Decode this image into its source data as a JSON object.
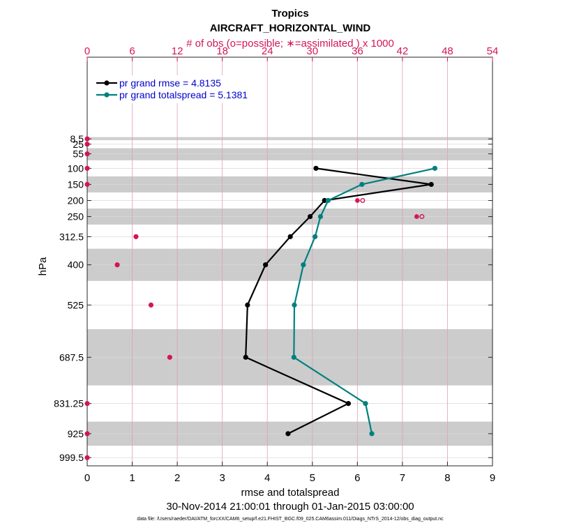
{
  "chart_data": {
    "type": "line",
    "title": "Tropics",
    "subtitle": "AIRCRAFT_HORIZONTAL_WIND",
    "xlabel": "rmse and totalspread",
    "ylabel": "hPa",
    "top_xlabel": "# of obs (o=possible; ∗=assimilated ) x 1000",
    "xlim": [
      0,
      9
    ],
    "x_ticks": [
      "0",
      "1",
      "2",
      "3",
      "4",
      "5",
      "6",
      "7",
      "8",
      "9"
    ],
    "top_xlim": [
      0,
      54
    ],
    "top_x_ticks": [
      "0",
      "6",
      "12",
      "18",
      "24",
      "30",
      "36",
      "42",
      "48",
      "54"
    ],
    "ylim": [
      0,
      1025
    ],
    "y_reversed": true,
    "levels": [
      8.5,
      25,
      55,
      100,
      150,
      200,
      250,
      312.5,
      400,
      525,
      687.5,
      831.25,
      925,
      999.5
    ],
    "level_labels": [
      "8.5",
      "25",
      "55",
      "100",
      "150",
      "200",
      "250",
      "312.5",
      "400",
      "525",
      "687.5",
      "831.25",
      "925",
      "999.5"
    ],
    "shaded_bands": [
      [
        0,
        12.5
      ],
      [
        37.5,
        75
      ],
      [
        125,
        175
      ],
      [
        225,
        275
      ],
      [
        350,
        450
      ],
      [
        600,
        775
      ],
      [
        887.5,
        962.5
      ]
    ],
    "legend_position": "top-left",
    "series": [
      {
        "name": "pr grand rmse = 4.8135",
        "color": "#000000",
        "points": [
          [
            5.08,
            100
          ],
          [
            7.64,
            150
          ],
          [
            5.27,
            200
          ],
          [
            4.95,
            250
          ],
          [
            4.51,
            312.5
          ],
          [
            3.96,
            400
          ],
          [
            3.56,
            525
          ],
          [
            3.52,
            687.5
          ],
          [
            5.8,
            831.25
          ],
          [
            4.46,
            925
          ]
        ]
      },
      {
        "name": "pr grand totalspread = 5.1381",
        "color": "#008080",
        "points": [
          [
            7.72,
            100
          ],
          [
            6.1,
            150
          ],
          [
            5.35,
            200
          ],
          [
            5.18,
            250
          ],
          [
            5.06,
            312.5
          ],
          [
            4.8,
            400
          ],
          [
            4.6,
            525
          ],
          [
            4.59,
            687.5
          ],
          [
            6.18,
            831.25
          ],
          [
            6.32,
            925
          ]
        ]
      }
    ],
    "obs": {
      "color": "#d4145a",
      "possible": [
        [
          0,
          8.5
        ],
        [
          0,
          25
        ],
        [
          0,
          55
        ],
        [
          0,
          100
        ],
        [
          0,
          150
        ],
        [
          36.7,
          200
        ],
        [
          44.6,
          250
        ],
        [
          6.5,
          312.5
        ],
        [
          4.0,
          400
        ],
        [
          8.5,
          525
        ],
        [
          11,
          687.5
        ],
        [
          0,
          831.25
        ],
        [
          0,
          925
        ],
        [
          0,
          999.5
        ]
      ],
      "assimilated": [
        [
          0,
          8.5
        ],
        [
          0,
          25
        ],
        [
          0,
          55
        ],
        [
          0,
          100
        ],
        [
          0,
          150
        ],
        [
          36.0,
          200
        ],
        [
          43.9,
          250
        ],
        [
          6.5,
          312.5
        ],
        [
          4.0,
          400
        ],
        [
          8.5,
          525
        ],
        [
          11,
          687.5
        ],
        [
          0,
          831.25
        ],
        [
          0,
          925
        ],
        [
          0,
          999.5
        ]
      ]
    },
    "period": "30-Nov-2014 21:00:01 through 01-Jan-2015 03:00:00",
    "datafile": "data file: /Users/raeder/DAI/ATM_forcXX/CAM6_setup/f.e21.FHIST_BGC.f09_025.CAM6assim.011/Diags_NTrS_2014-12/obs_diag_output.nc"
  }
}
